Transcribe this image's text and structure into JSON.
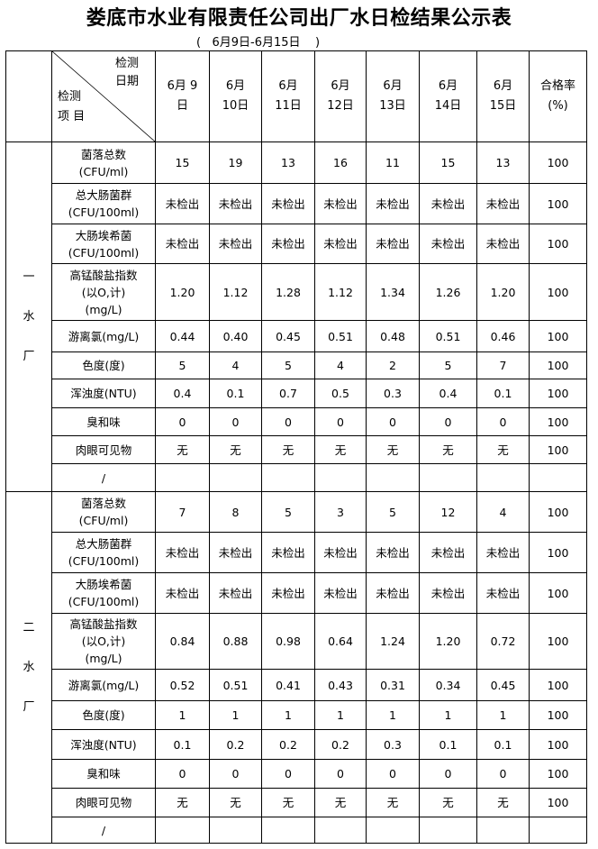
{
  "title": "娄底市水业有限责任公司出厂水日检结果公示表",
  "subtitle": "(   6月9日-6月15日    )",
  "header": {
    "corner_top": [
      "检测",
      "日期"
    ],
    "corner_bottom": [
      "检测",
      "项 目"
    ],
    "dates": [
      [
        "6月 9",
        "日"
      ],
      [
        "6月",
        "10日"
      ],
      [
        "6月",
        "11日"
      ],
      [
        "6月",
        "12日"
      ],
      [
        "6月",
        "13日"
      ],
      [
        "6月",
        "14日"
      ],
      [
        "6月",
        "15日"
      ]
    ],
    "rate": [
      "合格率",
      "(%)"
    ]
  },
  "sections": [
    {
      "plant": [
        "一",
        "水",
        "厂"
      ],
      "rows": [
        {
          "item": [
            "菌落总数",
            "(CFU/ml)"
          ],
          "values": [
            "15",
            "19",
            "13",
            "16",
            "11",
            "15",
            "13"
          ],
          "rate": "100"
        },
        {
          "item": [
            "总大肠菌群",
            "(CFU/100ml)"
          ],
          "values": [
            "未检出",
            "未检出",
            "未检出",
            "未检出",
            "未检出",
            "未检出",
            "未检出"
          ],
          "rate": "100"
        },
        {
          "item": [
            "大肠埃希菌",
            "(CFU/100ml)"
          ],
          "values": [
            "未检出",
            "未检出",
            "未检出",
            "未检出",
            "未检出",
            "未检出",
            "未检出"
          ],
          "rate": "100"
        },
        {
          "item": [
            "高锰酸盐指数",
            "(以O,计)",
            "(mg/L)"
          ],
          "values": [
            "1.20",
            "1.12",
            "1.28",
            "1.12",
            "1.34",
            "1.26",
            "1.20"
          ],
          "rate": "100"
        },
        {
          "item": [
            "游离氯(mg/L)"
          ],
          "values": [
            "0.44",
            "0.40",
            "0.45",
            "0.51",
            "0.48",
            "0.51",
            "0.46"
          ],
          "rate": "100"
        },
        {
          "item": [
            "色度(度)"
          ],
          "values": [
            "5",
            "4",
            "5",
            "4",
            "2",
            "5",
            "7"
          ],
          "rate": "100"
        },
        {
          "item": [
            "浑浊度(NTU)"
          ],
          "values": [
            "0.4",
            "0.1",
            "0.7",
            "0.5",
            "0.3",
            "0.4",
            "0.1"
          ],
          "rate": "100"
        },
        {
          "item": [
            "臭和味"
          ],
          "values": [
            "0",
            "0",
            "0",
            "0",
            "0",
            "0",
            "0"
          ],
          "rate": "100"
        },
        {
          "item": [
            "肉眼可见物"
          ],
          "values": [
            "无",
            "无",
            "无",
            "无",
            "无",
            "无",
            "无"
          ],
          "rate": "100"
        },
        {
          "item": [
            "/"
          ],
          "values": [
            "",
            "",
            "",
            "",
            "",
            "",
            ""
          ],
          "rate": ""
        }
      ]
    },
    {
      "plant": [
        "二",
        "水",
        "厂"
      ],
      "rows": [
        {
          "item": [
            "菌落总数",
            "(CFU/ml)"
          ],
          "values": [
            "7",
            "8",
            "5",
            "3",
            "5",
            "12",
            "4"
          ],
          "rate": "100"
        },
        {
          "item": [
            "总大肠菌群",
            "(CFU/100ml)"
          ],
          "values": [
            "未检出",
            "未检出",
            "未检出",
            "未检出",
            "未检出",
            "未检出",
            "未检出"
          ],
          "rate": "100"
        },
        {
          "item": [
            "大肠埃希菌",
            "(CFU/100ml)"
          ],
          "values": [
            "未检出",
            "未检出",
            "未检出",
            "未检出",
            "未检出",
            "未检出",
            "未检出"
          ],
          "rate": "100"
        },
        {
          "item": [
            "高锰酸盐指数",
            "(以O,计)",
            "(mg/L)"
          ],
          "values": [
            "0.84",
            "0.88",
            "0.98",
            "0.64",
            "1.24",
            "1.20",
            "0.72"
          ],
          "rate": "100"
        },
        {
          "item": [
            "游离氯(mg/L)"
          ],
          "values": [
            "0.52",
            "0.51",
            "0.41",
            "0.43",
            "0.31",
            "0.34",
            "0.45"
          ],
          "rate": "100"
        },
        {
          "item": [
            "色度(度)"
          ],
          "values": [
            "1",
            "1",
            "1",
            "1",
            "1",
            "1",
            "1"
          ],
          "rate": "100"
        },
        {
          "item": [
            "浑浊度(NTU)"
          ],
          "values": [
            "0.1",
            "0.2",
            "0.2",
            "0.2",
            "0.3",
            "0.1",
            "0.1"
          ],
          "rate": "100"
        },
        {
          "item": [
            "臭和味"
          ],
          "values": [
            "0",
            "0",
            "0",
            "0",
            "0",
            "0",
            "0"
          ],
          "rate": "100"
        },
        {
          "item": [
            "肉眼可见物"
          ],
          "values": [
            "无",
            "无",
            "无",
            "无",
            "无",
            "无",
            "无"
          ],
          "rate": "100"
        },
        {
          "item": [
            "/"
          ],
          "values": [
            "",
            "",
            "",
            "",
            "",
            "",
            ""
          ],
          "rate": ""
        }
      ]
    }
  ]
}
